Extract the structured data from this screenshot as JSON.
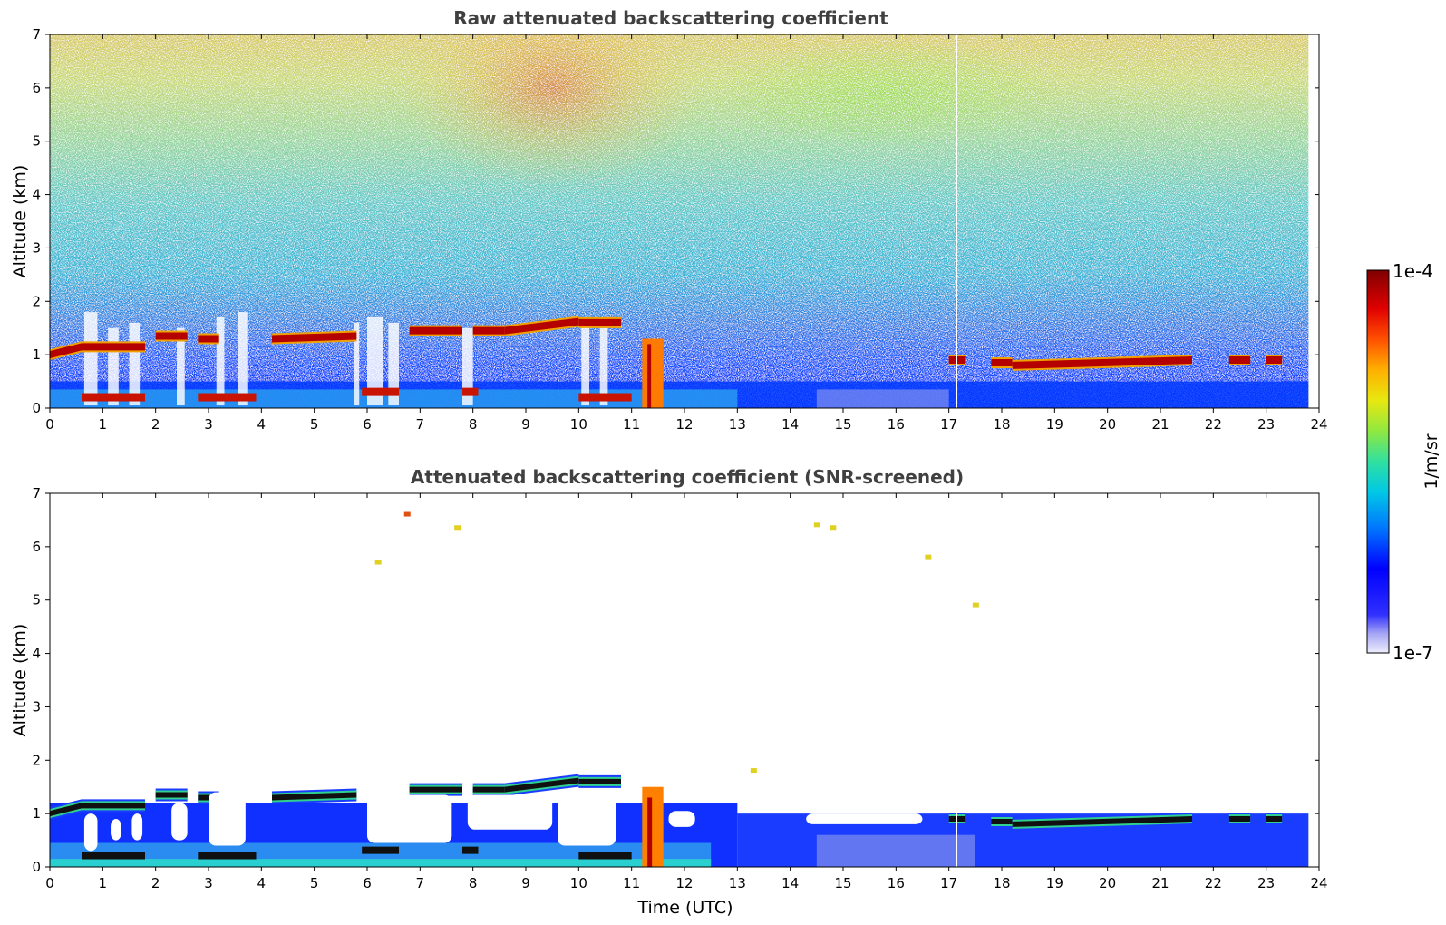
{
  "figure": {
    "xlabel": "Time (UTC)",
    "colorbar": {
      "label": "1/m/sr",
      "max_label": "1e-4",
      "min_label": "1e-7",
      "scale": "log",
      "range": [
        1e-07,
        0.0001
      ]
    }
  },
  "chart_data": [
    {
      "type": "heatmap",
      "title": "Raw attenuated backscattering coefficient",
      "xlabel": "",
      "ylabel": "Altitude (km)",
      "xlim": [
        0,
        24
      ],
      "ylim": [
        0,
        7
      ],
      "xticks": [
        "0",
        "1",
        "2",
        "3",
        "4",
        "5",
        "6",
        "7",
        "8",
        "9",
        "10",
        "11",
        "12",
        "13",
        "14",
        "15",
        "16",
        "17",
        "18",
        "19",
        "20",
        "21",
        "22",
        "23",
        "24"
      ],
      "yticks": [
        "0",
        "1",
        "2",
        "3",
        "4",
        "5",
        "6",
        "7"
      ],
      "data_end_time": 23.8,
      "cloud_layers": [
        {
          "t0": 0.0,
          "t1": 0.6,
          "alt": 1.0,
          "alt_end": 1.15
        },
        {
          "t0": 0.6,
          "t1": 1.8,
          "alt": 1.15
        },
        {
          "t0": 2.0,
          "t1": 2.6,
          "alt": 1.35
        },
        {
          "t0": 2.8,
          "t1": 3.2,
          "alt": 1.3
        },
        {
          "t0": 4.2,
          "t1": 5.8,
          "alt": 1.3,
          "alt_end": 1.35
        },
        {
          "t0": 6.8,
          "t1": 7.8,
          "alt": 1.45
        },
        {
          "t0": 8.0,
          "t1": 8.6,
          "alt": 1.45
        },
        {
          "t0": 8.6,
          "t1": 10.0,
          "alt": 1.45,
          "alt_end": 1.62
        },
        {
          "t0": 10.0,
          "t1": 10.8,
          "alt": 1.6
        },
        {
          "t0": 17.0,
          "t1": 17.3,
          "alt": 0.9
        },
        {
          "t0": 17.8,
          "t1": 18.2,
          "alt": 0.85
        },
        {
          "t0": 18.2,
          "t1": 21.6,
          "alt": 0.8,
          "alt_end": 0.9
        },
        {
          "t0": 22.3,
          "t1": 22.7,
          "alt": 0.9
        },
        {
          "t0": 23.0,
          "t1": 23.3,
          "alt": 0.9
        }
      ],
      "low_layers": [
        {
          "t0": 0.6,
          "t1": 1.8,
          "alt": 0.2
        },
        {
          "t0": 2.8,
          "t1": 3.9,
          "alt": 0.2
        },
        {
          "t0": 5.9,
          "t1": 6.6,
          "alt": 0.3
        },
        {
          "t0": 7.8,
          "t1": 8.1,
          "alt": 0.3
        },
        {
          "t0": 10.0,
          "t1": 11.0,
          "alt": 0.2
        }
      ],
      "precip_shafts": [
        {
          "t0": 11.2,
          "t1": 11.6,
          "top": 1.3
        }
      ],
      "signal_gaps": [
        {
          "t0": 0.65,
          "t1": 0.9,
          "top": 1.8
        },
        {
          "t0": 1.1,
          "t1": 1.3,
          "top": 1.5
        },
        {
          "t0": 1.5,
          "t1": 1.7,
          "top": 1.6
        },
        {
          "t0": 2.4,
          "t1": 2.55,
          "top": 1.5
        },
        {
          "t0": 3.15,
          "t1": 3.3,
          "top": 1.7
        },
        {
          "t0": 3.55,
          "t1": 3.75,
          "top": 1.8
        },
        {
          "t0": 5.75,
          "t1": 5.85,
          "top": 1.6
        },
        {
          "t0": 6.0,
          "t1": 6.3,
          "top": 1.7
        },
        {
          "t0": 6.4,
          "t1": 6.6,
          "top": 1.6
        },
        {
          "t0": 7.8,
          "t1": 8.0,
          "top": 1.5
        },
        {
          "t0": 10.05,
          "t1": 10.2,
          "top": 1.6
        },
        {
          "t0": 10.4,
          "t1": 10.55,
          "top": 1.5
        }
      ]
    },
    {
      "type": "heatmap",
      "title": "Attenuated backscattering coefficient (SNR-screened)",
      "xlabel": "Time (UTC)",
      "ylabel": "Altitude (km)",
      "xlim": [
        0,
        24
      ],
      "ylim": [
        0,
        7
      ],
      "xticks": [
        "0",
        "1",
        "2",
        "3",
        "4",
        "5",
        "6",
        "7",
        "8",
        "9",
        "10",
        "11",
        "12",
        "13",
        "14",
        "15",
        "16",
        "17",
        "18",
        "19",
        "20",
        "21",
        "22",
        "23",
        "24"
      ],
      "yticks": [
        "0",
        "1",
        "2",
        "3",
        "4",
        "5",
        "6",
        "7"
      ],
      "screened_gaps": [
        {
          "t0": 0.65,
          "t1": 0.9,
          "bot": 0.3,
          "top": 1.0
        },
        {
          "t0": 1.15,
          "t1": 1.35,
          "bot": 0.5,
          "top": 0.9
        },
        {
          "t0": 1.55,
          "t1": 1.75,
          "bot": 0.5,
          "top": 1.0
        },
        {
          "t0": 2.3,
          "t1": 2.6,
          "bot": 0.5,
          "top": 1.2
        },
        {
          "t0": 3.0,
          "t1": 3.7,
          "bot": 0.4,
          "top": 1.4
        },
        {
          "t0": 6.0,
          "t1": 7.6,
          "bot": 0.45,
          "top": 1.35
        },
        {
          "t0": 7.9,
          "t1": 9.5,
          "bot": 0.7,
          "top": 1.35
        },
        {
          "t0": 9.6,
          "t1": 10.7,
          "bot": 0.4,
          "top": 1.45
        },
        {
          "t0": 11.7,
          "t1": 12.2,
          "bot": 0.75,
          "top": 1.05
        },
        {
          "t0": 14.3,
          "t1": 16.5,
          "bot": 0.8,
          "top": 1.0
        }
      ],
      "isolated_echoes": [
        {
          "t": 6.75,
          "alt": 6.6
        },
        {
          "t": 6.2,
          "alt": 5.7
        },
        {
          "t": 7.7,
          "alt": 6.35
        },
        {
          "t": 14.5,
          "alt": 6.4
        },
        {
          "t": 14.8,
          "alt": 6.35
        },
        {
          "t": 16.6,
          "alt": 5.8
        },
        {
          "t": 17.5,
          "alt": 4.9
        },
        {
          "t": 13.3,
          "alt": 1.8
        }
      ]
    }
  ]
}
